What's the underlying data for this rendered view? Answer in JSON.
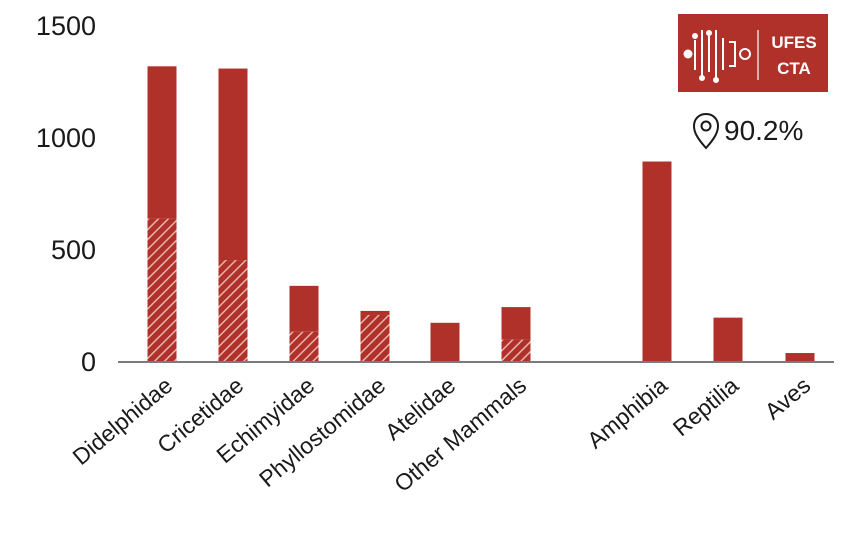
{
  "chart_data": {
    "type": "bar",
    "stacked": true,
    "categories": [
      "Didelphidae",
      "Cricetidae",
      "Echimyidae",
      "Phyllostomidae",
      "Atelidae",
      "Other Mammals",
      "Amphibia",
      "Reptilia",
      "Aves"
    ],
    "series": [
      {
        "pattern": "hatched",
        "values": [
          640,
          455,
          135,
          210,
          0,
          100,
          0,
          0,
          0
        ]
      },
      {
        "pattern": "solid",
        "values": [
          680,
          855,
          205,
          18,
          175,
          145,
          895,
          198,
          40
        ]
      }
    ],
    "yticks": [
      0,
      500,
      1000,
      1500
    ],
    "ylim": [
      0,
      1500
    ],
    "grid": false,
    "colors": {
      "bar": "#b0302a",
      "hatch": "#e8b4ae",
      "axis": "#7a7a7a"
    }
  },
  "badge": {
    "line1": "UFES",
    "line2": "CTA",
    "color": "#b0302a"
  },
  "annotation": {
    "icon": "location-pin-icon",
    "text": "90.2%"
  }
}
